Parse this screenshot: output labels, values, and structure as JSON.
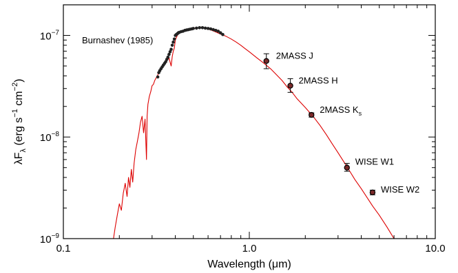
{
  "chart_data": {
    "type": "scatter",
    "title": "",
    "xlabel": "Wavelength (μm)",
    "ylabel": "λF_λ (erg s^-1 cm^-2)",
    "xscale": "log",
    "yscale": "log",
    "xlim": [
      0.1,
      10.0
    ],
    "ylim": [
      1e-09,
      2e-07
    ],
    "grid": false,
    "x_tick_labels": [
      {
        "value": 0.1,
        "label": "0.1"
      },
      {
        "value": 1.0,
        "label": "1.0"
      },
      {
        "value": 10.0,
        "label": "10.0"
      }
    ],
    "y_tick_labels": [
      {
        "value": 1e-09,
        "base": "10",
        "exp": "−9"
      },
      {
        "value": 1e-08,
        "base": "10",
        "exp": "−8"
      },
      {
        "value": 1e-07,
        "base": "10",
        "exp": "−7"
      }
    ],
    "annotation": "Burnashev (1985)",
    "colors": {
      "model": "#dd0000",
      "points": "#222222",
      "errorbars": "#000000",
      "axes": "#000000"
    },
    "series": [
      {
        "type": "line",
        "color": "#dd0000",
        "x": [
          0.186,
          0.19,
          0.195,
          0.2,
          0.205,
          0.21,
          0.215,
          0.22,
          0.224,
          0.228,
          0.232,
          0.236,
          0.24,
          0.245,
          0.25,
          0.255,
          0.26,
          0.265,
          0.27,
          0.275,
          0.28,
          0.282,
          0.285,
          0.29,
          0.295,
          0.3,
          0.305,
          0.31,
          0.315,
          0.32,
          0.33,
          0.34,
          0.35,
          0.36,
          0.37,
          0.38,
          0.385,
          0.39,
          0.395,
          0.4,
          0.405,
          0.41,
          0.42,
          0.43,
          0.44,
          0.45,
          0.46,
          0.48,
          0.5,
          0.52,
          0.55,
          0.58,
          0.6,
          0.63,
          0.66,
          0.7,
          0.75,
          0.8,
          0.85,
          0.9,
          0.95,
          1.0,
          1.1,
          1.2,
          1.3,
          1.4,
          1.5,
          1.6,
          1.7,
          1.8,
          2.0,
          2.2,
          2.4,
          2.6,
          2.8,
          3.0,
          3.35,
          3.7,
          4.0,
          4.6,
          5.0,
          5.5,
          6.0
        ],
        "y": [
          1e-09,
          1.3e-09,
          1.7e-09,
          2.2e-09,
          1.9e-09,
          2.8e-09,
          3.5e-09,
          2.6e-09,
          4e-09,
          3.2e-09,
          4.8e-09,
          3.6e-09,
          5.5e-09,
          7.5e-09,
          9e-09,
          1.1e-08,
          1.4e-08,
          1.6e-08,
          1.1e-08,
          1.5e-08,
          6e-09,
          1.6e-08,
          2.1e-08,
          2.5e-08,
          2.8e-08,
          3.2e-08,
          3.3e-08,
          3.6e-08,
          3.8e-08,
          4e-08,
          4.5e-08,
          4.8e-08,
          5.2e-08,
          5.6e-08,
          6e-08,
          5e-08,
          6.2e-08,
          7e-08,
          7.5e-08,
          9e-08,
          9.5e-08,
          1e-07,
          1.05e-07,
          1.08e-07,
          1.1e-07,
          1.12e-07,
          1.14e-07,
          1.16e-07,
          1.18e-07,
          1.18e-07,
          1.19e-07,
          1.18e-07,
          1.16e-07,
          1.12e-07,
          1.08e-07,
          1.03e-07,
          9.8e-08,
          9.2e-08,
          8.6e-08,
          8e-08,
          7.4e-08,
          6.9e-08,
          6e-08,
          5.3e-08,
          4.7e-08,
          4.1e-08,
          3.6e-08,
          3.1e-08,
          2.75e-08,
          2.4e-08,
          1.95e-08,
          1.6e-08,
          1.3e-08,
          1.05e-08,
          8.5e-09,
          7e-09,
          5.1e-09,
          3.8e-09,
          3.1e-09,
          2.1e-09,
          1.7e-09,
          1.3e-09,
          1e-09
        ]
      },
      {
        "type": "scatter",
        "color": "#222222",
        "x": [
          0.322,
          0.326,
          0.33,
          0.335,
          0.34,
          0.345,
          0.35,
          0.355,
          0.36,
          0.365,
          0.37,
          0.375,
          0.38,
          0.385,
          0.39,
          0.395,
          0.4,
          0.405,
          0.41,
          0.415,
          0.42,
          0.43,
          0.44,
          0.45,
          0.46,
          0.47,
          0.48,
          0.49,
          0.5,
          0.52,
          0.54,
          0.56,
          0.58,
          0.6,
          0.62,
          0.64,
          0.66,
          0.68,
          0.7,
          0.72
        ],
        "y": [
          3.9e-08,
          4.3e-08,
          4.5e-08,
          4.7e-08,
          4.9e-08,
          5.1e-08,
          5.3e-08,
          5.5e-08,
          5.8e-08,
          6.1e-08,
          6.5e-08,
          6.9e-08,
          7.3e-08,
          8e-08,
          8.6e-08,
          9.2e-08,
          1e-07,
          1.02e-07,
          1.04e-07,
          1.06e-07,
          1.07e-07,
          1.09e-07,
          1.1e-07,
          1.12e-07,
          1.13e-07,
          1.14e-07,
          1.15e-07,
          1.16e-07,
          1.17e-07,
          1.18e-07,
          1.19e-07,
          1.19e-07,
          1.18e-07,
          1.17e-07,
          1.16e-07,
          1.14e-07,
          1.12e-07,
          1.1e-07,
          1.06e-07,
          1.02e-07
        ]
      },
      {
        "type": "errorbar",
        "color": "#222222",
        "points": [
          {
            "label": "2MASS J",
            "x": 1.235,
            "y": 5.6e-08,
            "ylo": 4.7e-08,
            "yhi": 6.6e-08
          },
          {
            "label": "2MASS H",
            "x": 1.662,
            "y": 3.2e-08,
            "ylo": 2.75e-08,
            "yhi": 3.75e-08
          },
          {
            "label": "2MASS K",
            "sub": "s",
            "x": 2.159,
            "y": 1.65e-08,
            "ylo": 1.57e-08,
            "yhi": 1.73e-08
          },
          {
            "label": "WISE W1",
            "x": 3.35,
            "y": 5e-09,
            "ylo": 4.6e-09,
            "yhi": 5.5e-09
          },
          {
            "label": "WISE W2",
            "x": 4.6,
            "y": 2.85e-09,
            "ylo": 2.7e-09,
            "yhi": 3e-09
          }
        ]
      }
    ]
  }
}
